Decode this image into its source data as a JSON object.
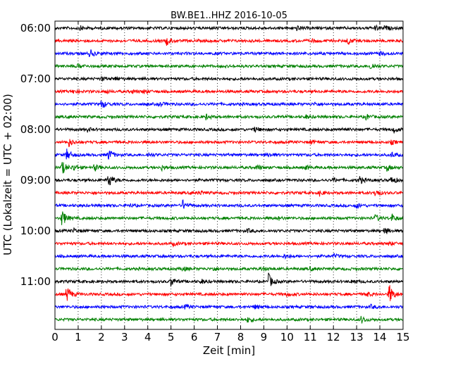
{
  "chart_data": {
    "type": "line",
    "title": "BW.BE1..HHZ 2016-10-05",
    "xlabel": "Zeit  [min]",
    "ylabel": "UTC (Lokalzeit = UTC + 02:00)",
    "xlim": [
      0,
      15
    ],
    "x_ticks": [
      "0",
      "1",
      "2",
      "3",
      "4",
      "5",
      "6",
      "7",
      "8",
      "9",
      "10",
      "11",
      "12",
      "13",
      "14",
      "15"
    ],
    "y_tick_labels": [
      "06:00",
      "07:00",
      "08:00",
      "09:00",
      "10:00",
      "11:00"
    ],
    "grid": {
      "vertical_dotted": true
    },
    "trace_colors": [
      "#000000",
      "#ff0000",
      "#0000ff",
      "#008000"
    ],
    "trace_count": 24,
    "trace_interval_min": 15,
    "events": [
      [
        [
          1.1,
          0.4
        ],
        [
          10.4,
          0.5
        ],
        [
          13.8,
          0.5
        ],
        [
          14.2,
          0.4
        ]
      ],
      [
        [
          4.8,
          0.9
        ],
        [
          11.0,
          0.5
        ],
        [
          12.6,
          0.8
        ]
      ],
      [
        [
          1.5,
          0.9
        ],
        [
          14.0,
          0.4
        ]
      ],
      [
        [
          1.0,
          0.5
        ],
        [
          13.6,
          0.9
        ]
      ],
      [
        [
          2.0,
          0.4
        ],
        [
          2.6,
          0.4
        ]
      ],
      [
        [
          0.8,
          0.4
        ],
        [
          2.2,
          0.4
        ],
        [
          3.3,
          0.4
        ],
        [
          3.8,
          0.4
        ]
      ],
      [
        [
          2.0,
          1.0
        ],
        [
          4.5,
          0.5
        ],
        [
          11.2,
          0.4
        ]
      ],
      [
        [
          6.5,
          0.6
        ],
        [
          10.8,
          0.4
        ],
        [
          13.4,
          0.6
        ]
      ],
      [
        [
          1.4,
          0.4
        ],
        [
          8.6,
          0.6
        ],
        [
          12.4,
          0.5
        ],
        [
          14.6,
          0.7
        ]
      ],
      [
        [
          0.6,
          0.9
        ],
        [
          11.0,
          0.5
        ],
        [
          14.5,
          0.4
        ]
      ],
      [
        [
          0.5,
          1.3
        ],
        [
          2.3,
          1.4
        ],
        [
          4.0,
          0.4
        ],
        [
          9.2,
          0.5
        ],
        [
          14.5,
          0.6
        ]
      ],
      [
        [
          0.3,
          1.6
        ],
        [
          0.8,
          0.7
        ],
        [
          1.7,
          0.8
        ],
        [
          4.6,
          0.5
        ],
        [
          8.7,
          0.6
        ],
        [
          10.8,
          0.4
        ],
        [
          14.3,
          0.7
        ]
      ],
      [
        [
          2.3,
          1.9
        ],
        [
          12.0,
          0.5
        ],
        [
          13.1,
          1.0
        ],
        [
          14.5,
          1.0
        ]
      ],
      [
        [
          6.2,
          0.5
        ],
        [
          11.4,
          0.6
        ],
        [
          13.8,
          1.0
        ]
      ],
      [
        [
          5.5,
          1.2
        ],
        [
          3.2,
          0.4
        ],
        [
          13.0,
          0.5
        ]
      ],
      [
        [
          0.3,
          2.0
        ],
        [
          13.8,
          0.8
        ],
        [
          14.5,
          1.0
        ],
        [
          9.6,
          0.4
        ]
      ],
      [
        [
          0.8,
          0.5
        ],
        [
          14.2,
          0.8
        ],
        [
          8.3,
          0.4
        ]
      ],
      [
        [
          14.4,
          0.4
        ],
        [
          5.1,
          0.4
        ]
      ],
      [
        [
          9.9,
          0.4
        ],
        [
          12.0,
          0.4
        ]
      ],
      [
        [
          5.5,
          0.5
        ],
        [
          6.8,
          0.5
        ],
        [
          11.0,
          0.4
        ],
        [
          8.9,
          0.4
        ]
      ],
      [
        [
          5.0,
          1.1
        ],
        [
          6.3,
          0.5
        ],
        [
          9.2,
          1.8
        ],
        [
          12.8,
          0.5
        ]
      ],
      [
        [
          0.5,
          2.0
        ],
        [
          10.0,
          0.5
        ],
        [
          14.4,
          2.4
        ],
        [
          13.4,
          0.6
        ]
      ],
      [
        [
          5.6,
          0.4
        ],
        [
          8.6,
          0.4
        ],
        [
          13.6,
          0.4
        ]
      ],
      [
        [
          8.3,
          0.6
        ],
        [
          13.2,
          0.8
        ]
      ]
    ]
  }
}
